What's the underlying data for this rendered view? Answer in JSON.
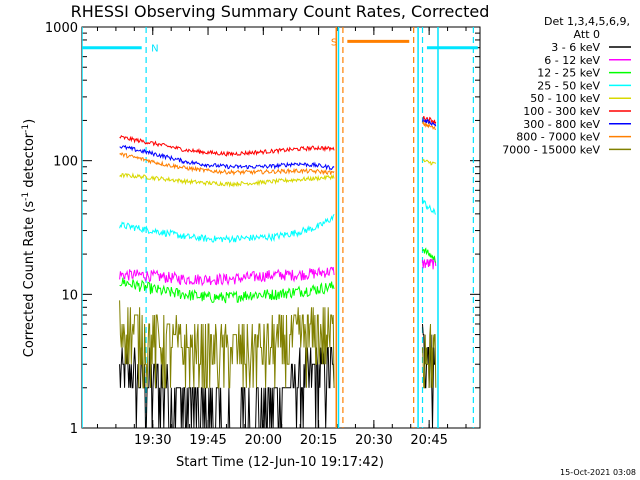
{
  "chart_data": {
    "type": "line",
    "title": "RHESSI Observing Summary Count Rates, Corrected",
    "xlabel": "Start Time (12-Jun-10 19:17:42)",
    "ylabel_main": "Corrected Count Rate (s",
    "ylabel_sup1": "-1",
    "ylabel_mid": " detector",
    "ylabel_sup2": "-1",
    "ylabel_end": ")",
    "yscale": "log",
    "ylim": [
      1,
      1000
    ],
    "xlim": [
      19.18,
      20.98
    ],
    "x_unit": "hour-of-day",
    "xticks": [
      {
        "value": 19.5,
        "label": "19:30"
      },
      {
        "value": 19.75,
        "label": "19:45"
      },
      {
        "value": 20.0,
        "label": "20:00"
      },
      {
        "value": 20.25,
        "label": "20:15"
      },
      {
        "value": 20.5,
        "label": "20:30"
      },
      {
        "value": 20.75,
        "label": "20:45"
      }
    ],
    "yticks": [
      {
        "value": 1,
        "label": "1"
      },
      {
        "value": 10,
        "label": "10"
      },
      {
        "value": 100,
        "label": "100"
      },
      {
        "value": 1000,
        "label": "1000"
      }
    ],
    "legend_header": "Det 1,3,4,5,6,9,",
    "legend_header2": "Att 0",
    "legend_position": "right",
    "timestamp": "15-Oct-2021 03:08",
    "flags": [
      {
        "label": "N",
        "color": "#00e5ff",
        "y": 700,
        "segments": [
          [
            19.18,
            19.45
          ],
          [
            20.74,
            20.97
          ]
        ],
        "boundaries": [
          19.47,
          20.72,
          20.95
        ]
      },
      {
        "label": "S",
        "color": "#ff7f00",
        "y": 780,
        "segments": [
          [
            20.38,
            20.66
          ]
        ],
        "boundaries": [
          20.36,
          20.68
        ]
      }
    ],
    "data_gaps": [
      {
        "color": "#00e5ff",
        "x": 19.18
      },
      {
        "color": "#00e5ff",
        "x": 20.34
      },
      {
        "color": "#00e5ff",
        "x": 20.7
      },
      {
        "color": "#00e5ff",
        "x": 20.79
      }
    ],
    "series": [
      {
        "name": "3 - 6 keV",
        "color": "#000000",
        "segments": [
          {
            "x": [
              19.35,
              19.45,
              19.55,
              19.65,
              19.75,
              19.85,
              19.95,
              20.05,
              20.15,
              20.25,
              20.32
            ],
            "y": [
              2.6,
              2.4,
              2.0,
              1.5,
              1.3,
              1.2,
              1.3,
              1.6,
              2.2,
              2.6,
              2.8
            ]
          },
          {
            "x": [
              20.72,
              20.75,
              20.78
            ],
            "y": [
              4.0,
              3.5,
              2.5
            ]
          }
        ]
      },
      {
        "name": "6 - 12 keV",
        "color": "#ff00ff",
        "segments": [
          {
            "x": [
              19.35,
              19.45,
              19.55,
              19.65,
              19.75,
              19.85,
              19.95,
              20.05,
              20.15,
              20.25,
              20.32
            ],
            "y": [
              14,
              14,
              13.5,
              13,
              13,
              13,
              13.5,
              14,
              14,
              14.5,
              15
            ]
          },
          {
            "x": [
              20.72,
              20.75,
              20.78
            ],
            "y": [
              17,
              17,
              17
            ]
          }
        ]
      },
      {
        "name": "12 - 25 keV",
        "color": "#00ff00",
        "segments": [
          {
            "x": [
              19.35,
              19.45,
              19.55,
              19.65,
              19.75,
              19.85,
              19.95,
              20.05,
              20.15,
              20.25,
              20.32
            ],
            "y": [
              12.5,
              11.5,
              10.5,
              10,
              9.5,
              9.5,
              10,
              10,
              10.5,
              11,
              11.5
            ]
          },
          {
            "x": [
              20.72,
              20.75,
              20.78
            ],
            "y": [
              22,
              20,
              18
            ]
          }
        ]
      },
      {
        "name": "25 - 50 keV",
        "color": "#00ffff",
        "segments": [
          {
            "x": [
              19.35,
              19.45,
              19.55,
              19.65,
              19.75,
              19.85,
              19.95,
              20.05,
              20.15,
              20.25,
              20.32
            ],
            "y": [
              33,
              31,
              29,
              27,
              26,
              26,
              26.5,
              27,
              29,
              32,
              38
            ]
          },
          {
            "x": [
              20.72,
              20.75,
              20.78
            ],
            "y": [
              50,
              44,
              40
            ]
          }
        ]
      },
      {
        "name": "50 - 100 keV",
        "color": "#d8d800",
        "segments": [
          {
            "x": [
              19.35,
              19.45,
              19.55,
              19.65,
              19.75,
              19.85,
              19.95,
              20.05,
              20.15,
              20.25,
              20.32
            ],
            "y": [
              78,
              76,
              73,
              70,
              68,
              67,
              68,
              70,
              72,
              74,
              76
            ]
          },
          {
            "x": [
              20.72,
              20.75,
              20.78
            ],
            "y": [
              100,
              97,
              95
            ]
          }
        ]
      },
      {
        "name": "100 - 300 keV",
        "color": "#ff0000",
        "segments": [
          {
            "x": [
              19.35,
              19.45,
              19.55,
              19.65,
              19.75,
              19.85,
              19.95,
              20.05,
              20.15,
              20.25,
              20.32
            ],
            "y": [
              150,
              140,
              130,
              120,
              115,
              112,
              115,
              118,
              122,
              125,
              122
            ]
          },
          {
            "x": [
              20.72,
              20.75,
              20.78
            ],
            "y": [
              210,
              205,
              195
            ]
          }
        ]
      },
      {
        "name": "300 - 800 keV",
        "color": "#0000ff",
        "segments": [
          {
            "x": [
              19.35,
              19.45,
              19.55,
              19.65,
              19.75,
              19.85,
              19.95,
              20.05,
              20.15,
              20.25,
              20.32
            ],
            "y": [
              128,
              118,
              108,
              98,
              93,
              90,
              90,
              91,
              95,
              92,
              88
            ]
          },
          {
            "x": [
              20.72,
              20.75,
              20.78
            ],
            "y": [
              200,
              195,
              185
            ]
          }
        ]
      },
      {
        "name": "800 - 7000 keV",
        "color": "#ff7f00",
        "segments": [
          {
            "x": [
              19.35,
              19.45,
              19.55,
              19.65,
              19.75,
              19.85,
              19.95,
              20.05,
              20.15,
              20.25,
              20.32
            ],
            "y": [
              112,
              103,
              94,
              88,
              84,
              82,
              82,
              83,
              84,
              83,
              81
            ]
          },
          {
            "x": [
              20.72,
              20.75,
              20.78
            ],
            "y": [
              190,
              182,
              172
            ]
          }
        ]
      },
      {
        "name": "7000 - 15000 keV",
        "color": "#808000",
        "segments": [
          {
            "x": [
              19.35,
              19.45,
              19.55,
              19.65,
              19.75,
              19.85,
              19.95,
              20.05,
              20.15,
              20.25,
              20.32
            ],
            "y": [
              6.0,
              5.0,
              4.5,
              4.0,
              3.8,
              3.7,
              4.0,
              4.2,
              4.8,
              5.2,
              5.0
            ]
          },
          {
            "x": [
              20.72,
              20.75,
              20.78
            ],
            "y": [
              4.5,
              4.0,
              3.5
            ]
          }
        ]
      }
    ]
  }
}
